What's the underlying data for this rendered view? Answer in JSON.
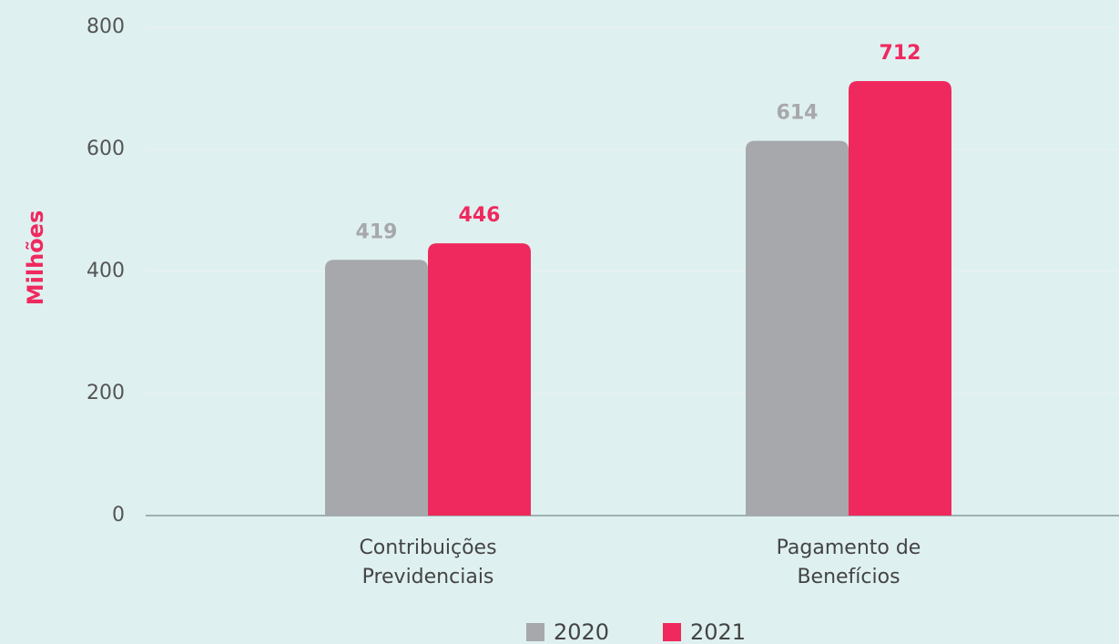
{
  "chart_data": {
    "type": "bar",
    "y_label": "Milhões",
    "categories": [
      "Contribuições Previdenciais",
      "Pagamento de Benefícios"
    ],
    "series": [
      {
        "name": "2020",
        "color": "#a7a8ab",
        "values": [
          419,
          614
        ]
      },
      {
        "name": "2021",
        "color": "#ef295e",
        "values": [
          446,
          712
        ]
      }
    ],
    "ylim": [
      0,
      800
    ],
    "yticks": [
      0,
      200,
      400,
      600,
      800
    ],
    "grid": true,
    "legend": "bottom"
  }
}
